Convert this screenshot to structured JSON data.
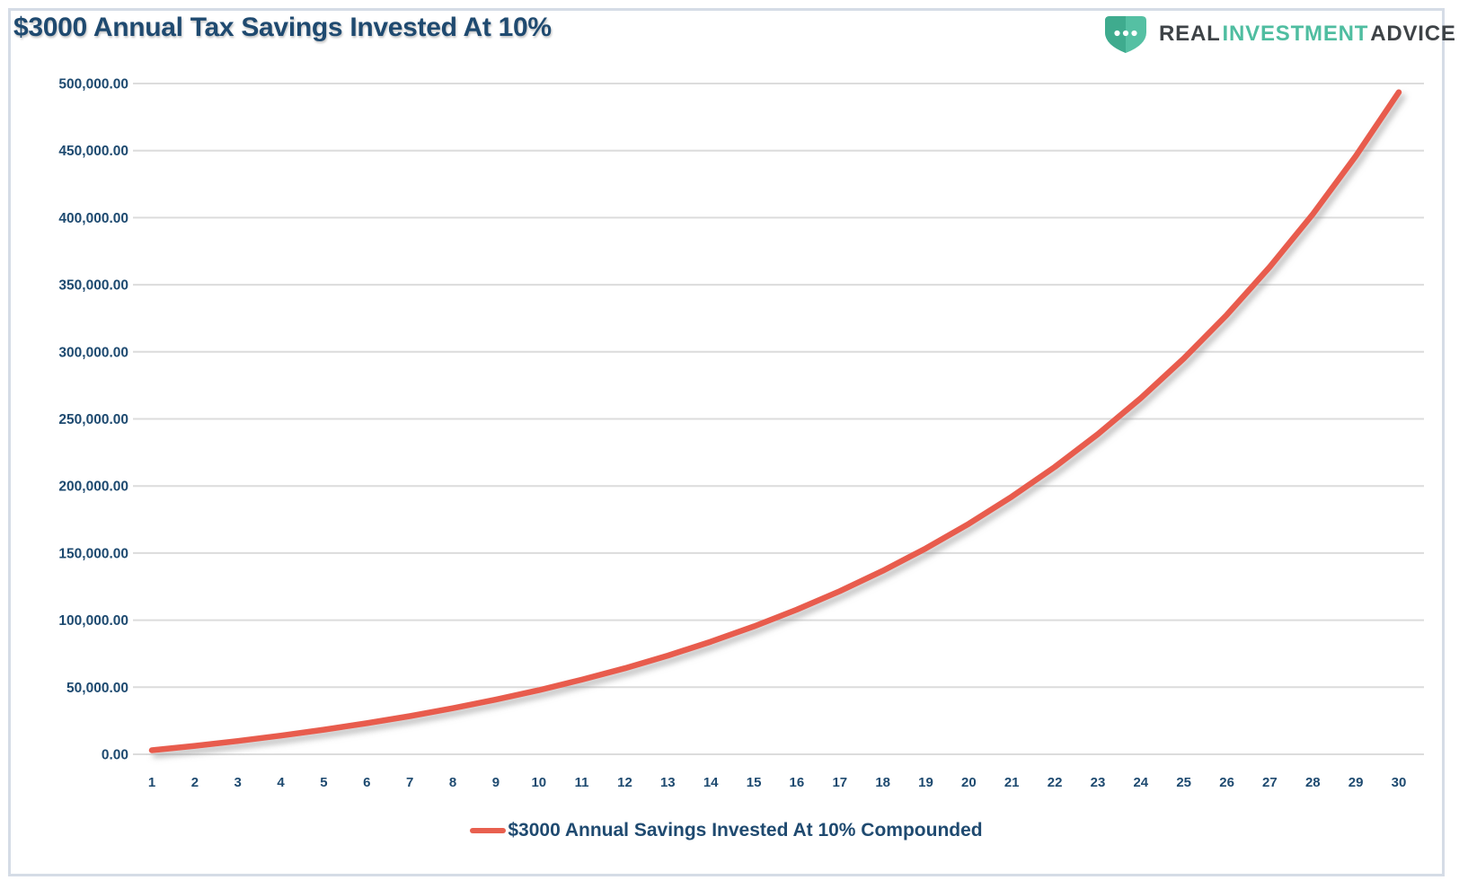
{
  "header": {
    "title": "$3000 Annual Tax Savings Invested At 10%",
    "logo": {
      "word1": "REAL",
      "word2": "INVESTMENT",
      "word3": "ADVICE",
      "shield_color": "#55c0a3",
      "shield_dark_color": "#3fab8e",
      "text_dark_color": "#3e4347",
      "text_teal_color": "#4fbda0"
    }
  },
  "chart_data": {
    "type": "line",
    "title": "$3000 Annual Tax Savings Invested At 10%",
    "x": [
      1,
      2,
      3,
      4,
      5,
      6,
      7,
      8,
      9,
      10,
      11,
      12,
      13,
      14,
      15,
      16,
      17,
      18,
      19,
      20,
      21,
      22,
      23,
      24,
      25,
      26,
      27,
      28,
      29,
      30
    ],
    "series": [
      {
        "name": "$3000 Annual Savings Invested At 10% Compounded",
        "color": "#e85b4d",
        "values": [
          3000.0,
          6300.0,
          9930.0,
          13923.0,
          18315.3,
          23146.83,
          28461.51,
          34307.66,
          40738.43,
          47812.27,
          55593.5,
          64152.85,
          73568.14,
          83924.95,
          95317.45,
          107849.19,
          121634.11,
          136797.52,
          153477.28,
          171825.0,
          192007.5,
          214208.25,
          238629.07,
          265491.98,
          295041.18,
          327545.3,
          363299.83,
          402629.81,
          445892.79,
          493482.07
        ]
      }
    ],
    "xlabel": "",
    "ylabel": "",
    "xlim": [
      1,
      30
    ],
    "ylim": [
      0,
      500000
    ],
    "y_tick_values": [
      0,
      50000,
      100000,
      150000,
      200000,
      250000,
      300000,
      350000,
      400000,
      450000,
      500000
    ],
    "y_tick_labels": [
      "0.00",
      "50,000.00",
      "100,000.00",
      "150,000.00",
      "200,000.00",
      "250,000.00",
      "300,000.00",
      "350,000.00",
      "400,000.00",
      "450,000.00",
      "500,000.00"
    ],
    "grid": "horizontal",
    "gridline_color": "#dcdcdc",
    "axis_label_color": "#1e4a70",
    "legend_position": "bottom-center"
  },
  "legend": {
    "label": "$3000 Annual Savings Invested At 10% Compounded",
    "swatch_color": "#e8604f"
  }
}
